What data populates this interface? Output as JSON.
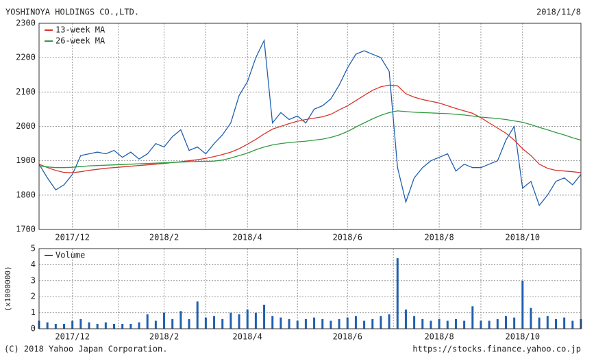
{
  "header": {
    "title": "YOSHINOYA HOLDINGS CO.,LTD.",
    "date": "2018/11/8"
  },
  "footer": {
    "copyright": "(C) 2018 Yahoo Japan Corporation.",
    "url": "https://stocks.finance.yahoo.co.jp"
  },
  "chart_data": [
    {
      "type": "line",
      "categories": [
        null,
        null,
        null,
        null,
        "2017/12",
        null,
        null,
        null,
        null,
        null,
        null,
        null,
        null,
        null,
        null,
        "2018/2",
        null,
        null,
        null,
        null,
        null,
        null,
        null,
        null,
        null,
        "2018/4",
        null,
        null,
        null,
        null,
        null,
        null,
        null,
        null,
        null,
        null,
        null,
        "2018/6",
        null,
        null,
        null,
        null,
        null,
        null,
        null,
        null,
        null,
        null,
        "2018/8",
        null,
        null,
        null,
        null,
        null,
        null,
        null,
        null,
        null,
        "2018/10",
        null,
        null,
        null,
        null,
        null,
        null,
        null
      ],
      "series": [
        {
          "color": "#1f5fb0",
          "values": [
            1890,
            1850,
            1815,
            1830,
            1860,
            1915,
            1920,
            1925,
            1920,
            1930,
            1910,
            1925,
            1905,
            1920,
            1950,
            1940,
            1970,
            1990,
            1930,
            1940,
            1920,
            1950,
            1975,
            2010,
            2090,
            2130,
            2200,
            2250,
            2010,
            2040,
            2020,
            2030,
            2010,
            2050,
            2060,
            2080,
            2120,
            2170,
            2210,
            2220,
            2210,
            2200,
            2160,
            1880,
            1780,
            1850,
            1880,
            1900,
            1910,
            1920,
            1870,
            1890,
            1880,
            1880,
            1890,
            1900,
            1960,
            2000,
            1820,
            1840,
            1770,
            1800,
            1840,
            1850,
            1830,
            1860
          ]
        },
        {
          "name": "13-week MA",
          "color": "#d9342b",
          "values": [
            1890,
            1880,
            1872,
            1866,
            1865,
            1868,
            1872,
            1875,
            1878,
            1880,
            1882,
            1884,
            1886,
            1888,
            1890,
            1892,
            1895,
            1897,
            1900,
            1903,
            1907,
            1912,
            1918,
            1925,
            1935,
            1948,
            1962,
            1978,
            1992,
            2000,
            2008,
            2015,
            2020,
            2024,
            2028,
            2035,
            2048,
            2060,
            2075,
            2090,
            2105,
            2115,
            2120,
            2118,
            2095,
            2085,
            2078,
            2073,
            2068,
            2060,
            2052,
            2045,
            2038,
            2025,
            2010,
            1995,
            1980,
            1960,
            1935,
            1915,
            1890,
            1878,
            1872,
            1870,
            1868,
            1865
          ]
        },
        {
          "name": "26-week MA",
          "color": "#2e9a3e",
          "values": [
            1885,
            1882,
            1880,
            1880,
            1881,
            1883,
            1885,
            1886,
            1887,
            1888,
            1889,
            1890,
            1891,
            1892,
            1893,
            1894,
            1895,
            1896,
            1897,
            1898,
            1898,
            1899,
            1902,
            1908,
            1915,
            1922,
            1932,
            1940,
            1946,
            1950,
            1953,
            1955,
            1957,
            1960,
            1963,
            1968,
            1975,
            1985,
            1998,
            2010,
            2022,
            2032,
            2040,
            2045,
            2043,
            2041,
            2040,
            2039,
            2038,
            2037,
            2035,
            2033,
            2030,
            2027,
            2025,
            2023,
            2020,
            2016,
            2012,
            2005,
            1997,
            1990,
            1982,
            1975,
            1967,
            1960
          ]
        }
      ],
      "ylim": [
        1700,
        2300
      ],
      "yticks": [
        1700,
        1800,
        1900,
        2000,
        2100,
        2200,
        2300
      ],
      "grid": true,
      "legend": "upper left"
    },
    {
      "type": "bar",
      "categories": [
        null,
        null,
        null,
        null,
        "2017/12",
        null,
        null,
        null,
        null,
        null,
        null,
        null,
        null,
        null,
        null,
        "2018/2",
        null,
        null,
        null,
        null,
        null,
        null,
        null,
        null,
        null,
        "2018/4",
        null,
        null,
        null,
        null,
        null,
        null,
        null,
        null,
        null,
        null,
        null,
        "2018/6",
        null,
        null,
        null,
        null,
        null,
        null,
        null,
        null,
        null,
        null,
        "2018/8",
        null,
        null,
        null,
        null,
        null,
        null,
        null,
        null,
        null,
        "2018/10",
        null,
        null,
        null,
        null,
        null,
        null,
        null
      ],
      "y_label": "(x1000000)",
      "series": [
        {
          "name": "Volume",
          "color": "#1f5fb0",
          "values": [
            0.5,
            0.4,
            0.3,
            0.3,
            0.5,
            0.6,
            0.4,
            0.3,
            0.4,
            0.3,
            0.3,
            0.3,
            0.4,
            0.9,
            0.5,
            1.0,
            0.6,
            1.1,
            0.6,
            1.7,
            0.7,
            0.8,
            0.6,
            1.0,
            0.9,
            1.2,
            1.0,
            1.5,
            0.8,
            0.7,
            0.6,
            0.5,
            0.6,
            0.7,
            0.6,
            0.5,
            0.6,
            0.7,
            0.8,
            0.5,
            0.6,
            0.8,
            0.9,
            4.4,
            1.2,
            0.8,
            0.6,
            0.5,
            0.6,
            0.5,
            0.6,
            0.5,
            1.4,
            0.5,
            0.5,
            0.6,
            0.8,
            0.7,
            3.0,
            1.3,
            0.7,
            0.8,
            0.6,
            0.7,
            0.5,
            0.6
          ]
        }
      ],
      "ylim": [
        0,
        5
      ],
      "yticks": [
        0,
        1,
        2,
        3,
        4,
        5
      ],
      "grid": true,
      "legend": "upper left"
    }
  ]
}
